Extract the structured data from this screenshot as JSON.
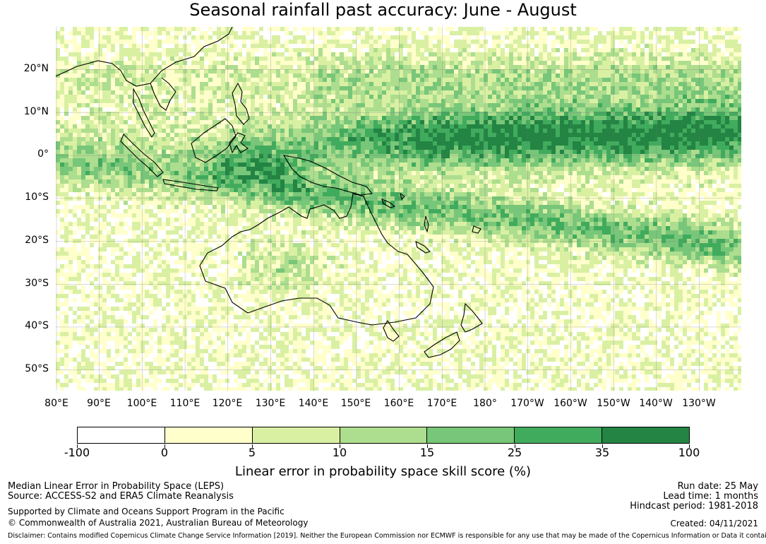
{
  "title": "Seasonal rainfall past accuracy: June - August",
  "map": {
    "type": "heatmap",
    "region": "Western Pacific and Australia",
    "lat_labels": [
      "20°N",
      "10°N",
      "0°",
      "10°S",
      "20°S",
      "30°S",
      "40°S",
      "50°S"
    ],
    "lon_labels": [
      "80°E",
      "90°E",
      "100°E",
      "110°E",
      "120°E",
      "130°E",
      "140°E",
      "150°E",
      "160°E",
      "170°E",
      "180°",
      "170°W",
      "160°W",
      "150°W",
      "140°W",
      "130°W"
    ]
  },
  "colorbar": {
    "ticks": [
      "-100",
      "0",
      "5",
      "10",
      "15",
      "25",
      "35",
      "100"
    ],
    "colors": [
      "#ffffff",
      "#ffffcc",
      "#d9f0a3",
      "#addd8e",
      "#78c679",
      "#41ab5d",
      "#238443"
    ],
    "label": "Linear error in probability space skill score (%)"
  },
  "footer": {
    "left_line1": "Median Linear Error in Probability Space (LEPS)",
    "left_line2": "Source: ACCESS-S2 and ERA5 Climate Reanalysis",
    "left_line3": "Supported by Climate and Oceans Support Program in the Pacific",
    "left_line4": "© Commonwealth of Australia 2021, Australian Bureau of Meteorology",
    "right_line1": "Run date: 25 May",
    "right_line2": "Lead time: 1 months",
    "right_line3": "Hindcast period: 1981-2018",
    "right_line4": "Created: 04/11/2021",
    "disclaimer": "Disclaimer: Contains modified Copernicus Climate Change Service Information [2019]. Neither the European Commission nor ECMWF is responsible for any use that may be made of the Copernicus Information or Data it contains."
  }
}
